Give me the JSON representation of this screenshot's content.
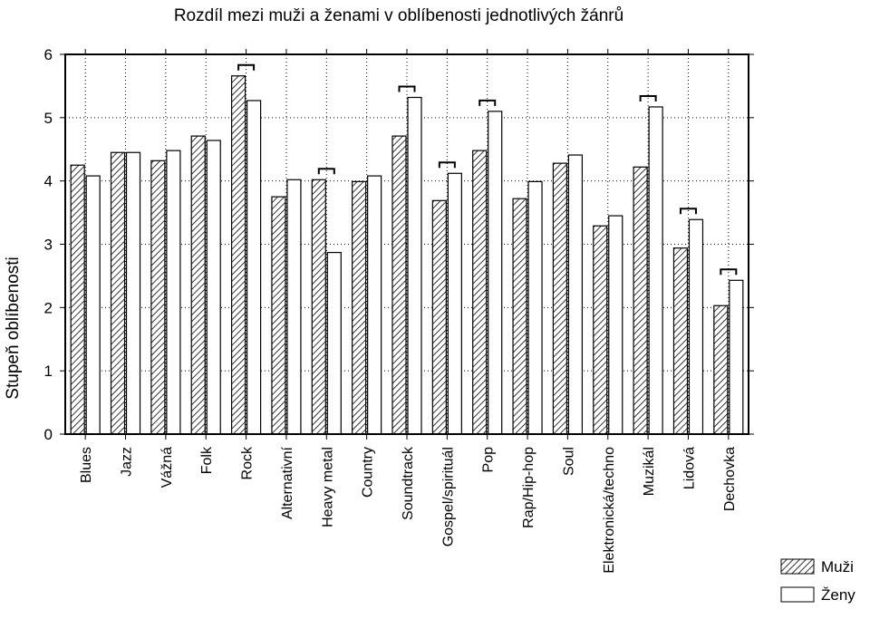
{
  "chart_data": {
    "type": "bar",
    "title": "Rozdíl mezi muži a ženami v oblíbenosti jednotlivých žánrů",
    "xlabel": "",
    "ylabel": "Stupeň oblíbenosti",
    "ylim": [
      0,
      6
    ],
    "yticks": [
      0,
      1,
      2,
      3,
      4,
      5,
      6
    ],
    "grid": true,
    "legend_position": "bottom-right",
    "categories": [
      "Blues",
      "Jazz",
      "Vážná",
      "Folk",
      "Rock",
      "Alternativní",
      "Heavy metal",
      "Country",
      "Soundtrack",
      "Gospel/spirituál",
      "Pop",
      "Rap/Hip-hop",
      "Soul",
      "Elektronická/techno",
      "Muzikál",
      "Lidová",
      "Dechovka"
    ],
    "series": [
      {
        "name": "Muži",
        "pattern": "hatched",
        "values": [
          4.25,
          4.45,
          4.32,
          4.71,
          5.66,
          3.75,
          4.02,
          3.99,
          4.71,
          3.69,
          4.48,
          3.72,
          4.28,
          3.29,
          4.22,
          2.94,
          2.03
        ]
      },
      {
        "name": "Ženy",
        "pattern": "empty",
        "values": [
          4.08,
          4.45,
          4.48,
          4.64,
          5.27,
          4.02,
          2.87,
          4.08,
          5.32,
          4.12,
          5.1,
          3.99,
          4.41,
          3.45,
          5.17,
          3.39,
          2.43
        ]
      }
    ],
    "significant_difference_brackets": [
      "Rock",
      "Heavy metal",
      "Soundtrack",
      "Gospel/spirituál",
      "Pop",
      "Muzikál",
      "Lidová",
      "Dechovka"
    ],
    "colors": {
      "bar_fill": "#ffffff",
      "hatch": "#000000",
      "axis": "#000000",
      "grid": "#000000"
    }
  }
}
